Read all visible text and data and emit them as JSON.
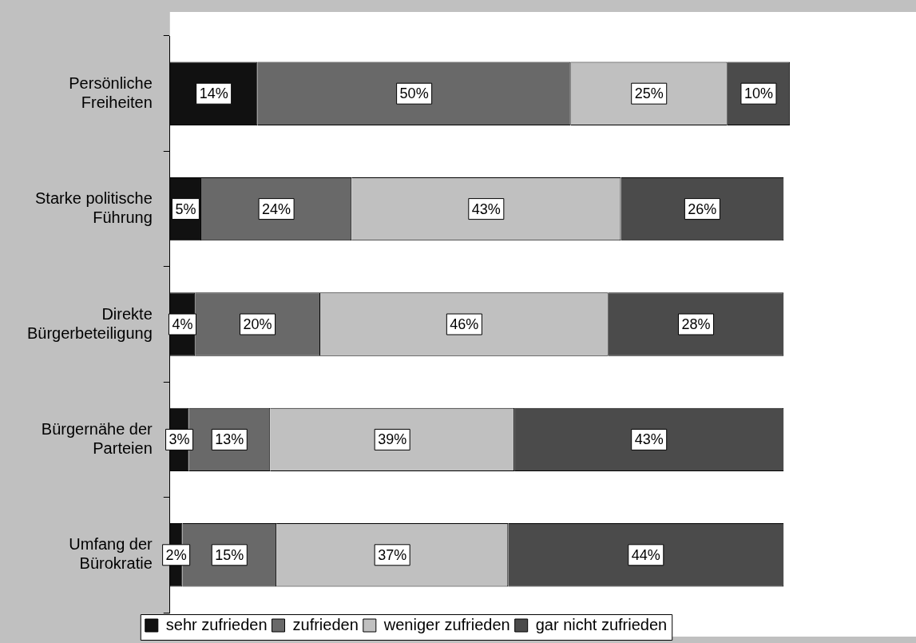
{
  "chart_data": {
    "type": "bar",
    "orientation": "horizontal",
    "stacked": true,
    "tick_labels": "y",
    "legend": "bottom",
    "categories": [
      "Persönliche Freiheiten",
      "Starke politische Führung",
      "Direkte Bürgerbeteiligung",
      "Bürgernähe der Parteien",
      "Umfang der Bürokratie"
    ],
    "series": [
      {
        "name": "sehr zufrieden",
        "color": "#111111",
        "values": [
          14,
          5,
          4,
          3,
          2
        ],
        "value_labels": [
          "14%",
          "5%",
          "4%",
          "3%",
          "2%"
        ]
      },
      {
        "name": "zufrieden",
        "color": "#696969",
        "values": [
          50,
          24,
          20,
          13,
          15
        ],
        "value_labels": [
          "50%",
          "24%",
          "20%",
          "13%",
          "15%"
        ]
      },
      {
        "name": "weniger zufrieden",
        "color": "#c0c0c0",
        "values": [
          25,
          43,
          46,
          39,
          37
        ],
        "value_labels": [
          "25%",
          "43%",
          "46%",
          "39%",
          "37%"
        ]
      },
      {
        "name": "gar nicht zufrieden",
        "color": "#4b4b4b",
        "values": [
          10,
          26,
          28,
          43,
          44
        ],
        "value_labels": [
          "10%",
          "26%",
          "28%",
          "43%",
          "44%"
        ]
      }
    ]
  }
}
